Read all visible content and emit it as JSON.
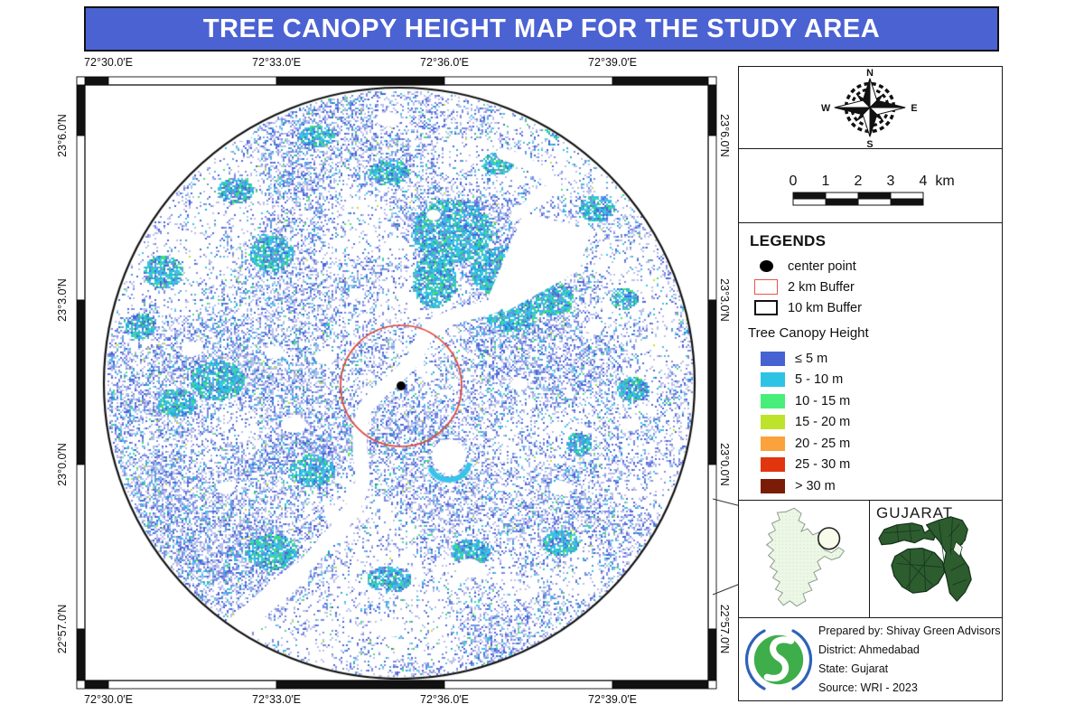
{
  "title": "TREE CANOPY HEIGHT MAP FOR THE STUDY AREA",
  "colors": {
    "title_bar": "#4b62d3",
    "red_buffer": "#e2463a",
    "frame": "#111111"
  },
  "map": {
    "lon_labels": [
      "72°30.0′E",
      "72°33.0′E",
      "72°36.0′E",
      "72°39.0′E"
    ],
    "lat_labels": [
      "23°6.0′N",
      "23°3.0′N",
      "23°0.0′N",
      "22°57.0′N"
    ],
    "palette": {
      "pale_blue": "#b7c0ed",
      "mid_blue": "#7c8be2",
      "deep_blue": "#4a65d8",
      "cyan": "#37c4e9",
      "teal": "#2baccb",
      "green": "#42e271",
      "yellow_green": "#bce32c"
    }
  },
  "compass": {
    "n": "N",
    "e": "E",
    "s": "S",
    "w": "W"
  },
  "scalebar": {
    "ticks": [
      "0",
      "1",
      "2",
      "3",
      "4"
    ],
    "unit": "km"
  },
  "legend": {
    "heading": "LEGENDS",
    "center_point_label": "center point",
    "buffer2_label": "2 km Buffer",
    "buffer10_label": "10 km Buffer",
    "canopy_heading": "Tree Canopy Height",
    "classes": [
      {
        "label": "≤ 5 m",
        "color": "#4763d2"
      },
      {
        "label": "5 - 10 m",
        "color": "#2cc3e4"
      },
      {
        "label": "10 - 15 m",
        "color": "#47ee7a"
      },
      {
        "label": "15 - 20 m",
        "color": "#bde32b"
      },
      {
        "label": "20 - 25 m",
        "color": "#fba23c"
      },
      {
        "label": "25 - 30 m",
        "color": "#e1350f"
      },
      {
        "label": "> 30 m",
        "color": "#7b1c06"
      }
    ]
  },
  "insets": {
    "state_label": "GUJARAT",
    "district_fill": "#edf7e6",
    "state_fill": "#2d5c2f"
  },
  "credits": {
    "lines": [
      "Prepared by: Shivay Green Advisors",
      "District: Ahmedabad",
      "State: Gujarat",
      "Source: WRI - 2023"
    ]
  }
}
